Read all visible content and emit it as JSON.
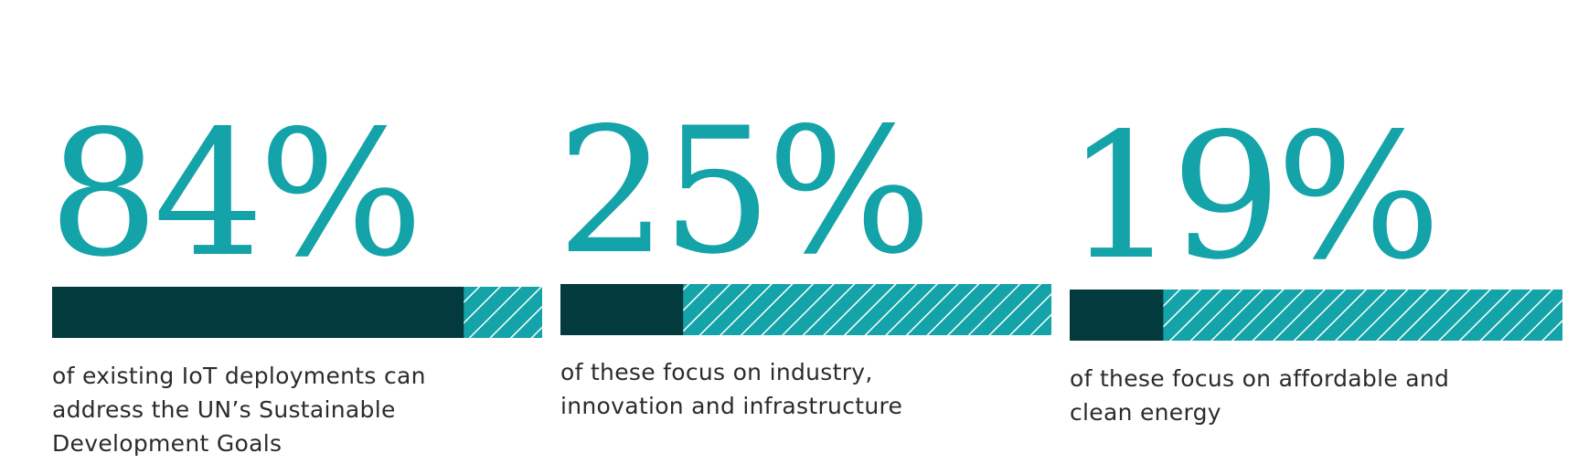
{
  "chart_data": {
    "type": "stat-bars",
    "categories": [
      "of existing IoT deployments can address the UN’s Sustainable Development Goals",
      "of these focus on industry, innovation and infrastructure",
      "of these focus on affordable and clean energy"
    ],
    "values": [
      84,
      25,
      19
    ],
    "value_labels": [
      "84%",
      "25%",
      "19%"
    ],
    "xlim": [
      0,
      100
    ],
    "color": "#023a3e",
    "rest_color": "#13a3a8",
    "label_color": "#13a3a8"
  }
}
